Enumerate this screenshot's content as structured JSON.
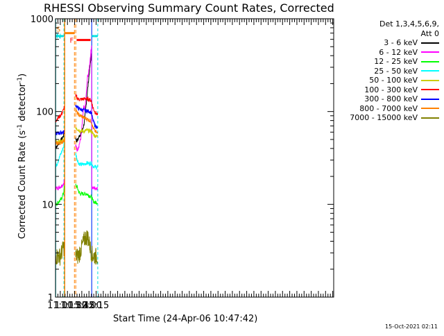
{
  "chart_data": {
    "type": "line",
    "title": "RHESSI Observing Summary Count Rates, Corrected",
    "xlabel": "Start Time (24-Apr-06 10:47:42)",
    "ylabel": "Corrected Count Rate (s",
    "ylabel_sup1": "-1",
    "ylabel_mid": " detector",
    "ylabel_sup2": "-1",
    "ylabel_end": ")",
    "yscale": "log",
    "ylim": [
      1,
      1000
    ],
    "xlim_min": [
      650,
      1232
    ],
    "y_ticks": [
      {
        "value": 1,
        "label": "1"
      },
      {
        "value": 10,
        "label": "10"
      },
      {
        "value": 100,
        "label": "100"
      },
      {
        "value": 1000,
        "label": "1000"
      }
    ],
    "x_ticks": [
      {
        "value": 660,
        "label": "11:00"
      },
      {
        "value": 675,
        "label": "11:15"
      },
      {
        "value": 690,
        "label": "11:30"
      },
      {
        "value": 705,
        "label": "11:45"
      },
      {
        "value": 720,
        "label": "12:00"
      },
      {
        "value": 735,
        "label": "12:15"
      }
    ],
    "legend_header": [
      "Det 1,3,4,5,6,9,",
      "Att 0"
    ],
    "data_gap_min": [
      668,
      692
    ],
    "flags": {
      "saa": {
        "label": "S",
        "color": "#ff8000",
        "x_min": [
          668.6,
          690.2
        ],
        "y": 700
      },
      "night": {
        "label": "N",
        "color": "#00e0e0",
        "x_min": [
          650.5,
          667.6
        ],
        "y": 650
      },
      "night_right": {
        "x_min": [
          725.8,
          732.5,
          738.4
        ],
        "y": 650
      },
      "flare": {
        "label": "F",
        "color": "#ff0000",
        "x_min": [
          694.2,
          723.4
        ],
        "y": 590
      }
    },
    "boundaries": {
      "solid_cyan_min": [
        650.5,
        725.8
      ],
      "dashed_cyan_min": [
        667.6,
        738.4
      ],
      "solid_orange_min": [
        669.2
      ],
      "dashed_orange_min": [
        689.6,
        692.4
      ],
      "solid_blue_min": [
        725.8
      ]
    },
    "series": [
      {
        "name": "3 - 6 keV",
        "color": "#000000",
        "points": [
          [
            650.5,
            41
          ],
          [
            655,
            44
          ],
          [
            660,
            48
          ],
          [
            664,
            51
          ],
          [
            667,
            56
          ],
          [
            668,
            60
          ],
          [
            692.5,
            52
          ],
          [
            694,
            48
          ],
          [
            697,
            50
          ],
          [
            700,
            55
          ],
          [
            703,
            58
          ],
          [
            705,
            60
          ],
          [
            708,
            68
          ],
          [
            710,
            75
          ],
          [
            712,
            92
          ],
          [
            714,
            118
          ],
          [
            716,
            150
          ],
          [
            718,
            190
          ],
          [
            720,
            240
          ],
          [
            722,
            300
          ],
          [
            724,
            370
          ],
          [
            725.5,
            430
          ],
          [
            725.8,
            430
          ]
        ]
      },
      {
        "name": "6 - 12 keV",
        "color": "#ff00ff",
        "points": [
          [
            650.5,
            15
          ],
          [
            655,
            15
          ],
          [
            660,
            15.5
          ],
          [
            664,
            16
          ],
          [
            667,
            17
          ],
          [
            668,
            18
          ],
          [
            692.5,
            43
          ],
          [
            695,
            38
          ],
          [
            697,
            40
          ],
          [
            700,
            45
          ],
          [
            703,
            52
          ],
          [
            705,
            65
          ],
          [
            707,
            88
          ],
          [
            709,
            112
          ],
          [
            711,
            104
          ],
          [
            713,
            128
          ],
          [
            715,
            172
          ],
          [
            717,
            238
          ],
          [
            719,
            255
          ],
          [
            721,
            310
          ],
          [
            723,
            395
          ],
          [
            725.5,
            520
          ],
          [
            725.8,
            15
          ],
          [
            738,
            15
          ]
        ]
      },
      {
        "name": "12 - 25 keV",
        "color": "#00ff00",
        "points": [
          [
            650.5,
            10
          ],
          [
            655,
            10.5
          ],
          [
            660,
            11
          ],
          [
            664,
            12
          ],
          [
            667,
            13.5
          ],
          [
            668,
            15
          ],
          [
            692.5,
            16
          ],
          [
            695,
            15.5
          ],
          [
            698,
            14
          ],
          [
            701,
            13
          ],
          [
            705,
            13
          ],
          [
            710,
            13
          ],
          [
            715,
            13
          ],
          [
            720,
            12.5
          ],
          [
            725,
            12
          ],
          [
            728,
            11
          ],
          [
            732,
            10.5
          ],
          [
            738,
            10.5
          ]
        ]
      },
      {
        "name": "25 - 50 keV",
        "color": "#00ffff",
        "points": [
          [
            650.5,
            25
          ],
          [
            655,
            29
          ],
          [
            660,
            34
          ],
          [
            664,
            38
          ],
          [
            667,
            42
          ],
          [
            668,
            46
          ],
          [
            692.5,
            35
          ],
          [
            695,
            31
          ],
          [
            698,
            28
          ],
          [
            701,
            27
          ],
          [
            705,
            27
          ],
          [
            710,
            27
          ],
          [
            715,
            28
          ],
          [
            720,
            27.5
          ],
          [
            725,
            28
          ],
          [
            728,
            26
          ],
          [
            732,
            25.5
          ],
          [
            738,
            25
          ]
        ]
      },
      {
        "name": "50 - 100 keV",
        "color": "#cccc00",
        "points": [
          [
            650.5,
            47
          ],
          [
            660,
            47
          ],
          [
            667,
            49
          ],
          [
            668,
            50
          ],
          [
            692.5,
            68
          ],
          [
            697,
            64
          ],
          [
            701,
            62
          ],
          [
            705,
            62
          ],
          [
            710,
            61
          ],
          [
            715,
            63
          ],
          [
            720,
            62
          ],
          [
            725,
            62
          ],
          [
            728,
            58
          ],
          [
            732,
            55
          ],
          [
            738,
            54
          ]
        ]
      },
      {
        "name": "100 - 300 keV",
        "color": "#ff0000",
        "points": [
          [
            650.5,
            80
          ],
          [
            655,
            85
          ],
          [
            660,
            90
          ],
          [
            664,
            97
          ],
          [
            667,
            105
          ],
          [
            668,
            112
          ],
          [
            692.5,
            148
          ],
          [
            695,
            140
          ],
          [
            698,
            136
          ],
          [
            702,
            135
          ],
          [
            706,
            136
          ],
          [
            710,
            137
          ],
          [
            714,
            137
          ],
          [
            718,
            136
          ],
          [
            722,
            134
          ],
          [
            725,
            130
          ],
          [
            728,
            112
          ],
          [
            732,
            100
          ],
          [
            738,
            92
          ]
        ]
      },
      {
        "name": "300 - 800 keV",
        "color": "#0000ff",
        "points": [
          [
            650.5,
            58
          ],
          [
            660,
            59
          ],
          [
            667,
            60
          ],
          [
            668,
            61
          ],
          [
            692.5,
            118
          ],
          [
            695,
            112
          ],
          [
            698,
            108
          ],
          [
            702,
            106
          ],
          [
            706,
            104
          ],
          [
            710,
            103
          ],
          [
            714,
            102
          ],
          [
            718,
            101
          ],
          [
            722,
            100
          ],
          [
            725,
            97
          ],
          [
            728,
            82
          ],
          [
            732,
            72
          ],
          [
            738,
            66
          ]
        ]
      },
      {
        "name": "800 - 7000 keV",
        "color": "#ff8000",
        "points": [
          [
            650.5,
            45
          ],
          [
            660,
            46
          ],
          [
            667,
            48
          ],
          [
            668,
            50
          ],
          [
            692.5,
            104
          ],
          [
            695,
            97
          ],
          [
            698,
            93
          ],
          [
            702,
            90
          ],
          [
            706,
            88
          ],
          [
            710,
            86
          ],
          [
            714,
            84
          ],
          [
            718,
            82
          ],
          [
            722,
            80
          ],
          [
            725,
            78
          ],
          [
            728,
            68
          ],
          [
            732,
            62
          ],
          [
            738,
            58
          ]
        ]
      },
      {
        "name": "7000 - 15000 keV",
        "color": "#808000",
        "points": [
          [
            650.5,
            2.8
          ],
          [
            655,
            2.8
          ],
          [
            660,
            2.8
          ],
          [
            664,
            3.2
          ],
          [
            667,
            3.5
          ],
          [
            668,
            3.5
          ],
          [
            692.5,
            2.8
          ],
          [
            698,
            2.8
          ],
          [
            702,
            3.2
          ],
          [
            706,
            3.6
          ],
          [
            710,
            4.2
          ],
          [
            714,
            4.5
          ],
          [
            718,
            4.5
          ],
          [
            722,
            3.6
          ],
          [
            725,
            3.1
          ],
          [
            728,
            2.8
          ],
          [
            732,
            2.8
          ],
          [
            738,
            2.8
          ]
        ]
      }
    ]
  },
  "stamp": "15-Oct-2021 02:11"
}
